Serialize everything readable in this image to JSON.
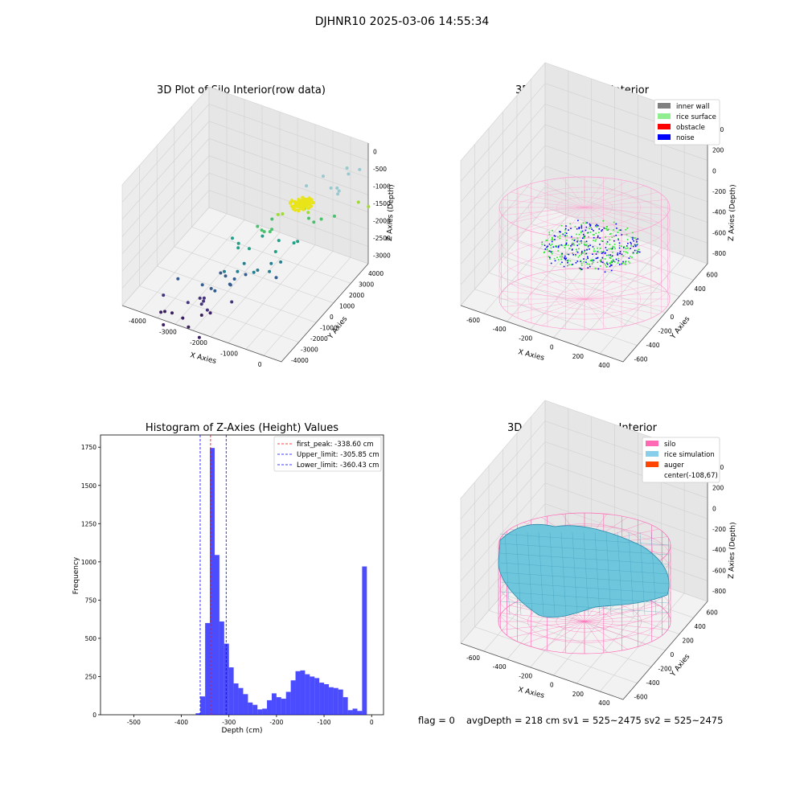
{
  "suptitle": "DJHNR10 2025-03-06 14:55:34",
  "footer": {
    "flag": "flag = 0",
    "stats": "avgDepth = 218 cm  sv1 = 525~2475  sv2 = 525~2475"
  },
  "panel_raw": {
    "title": "3D Plot of Silo Interior(row data)",
    "xlabel": "X Axies",
    "ylabel": "Y Axies",
    "zlabel": "Z Axies (Depth)",
    "xticks": [
      "-4000",
      "-3000",
      "-2000",
      "-1000",
      "0"
    ],
    "yticks": [
      "-4000",
      "-3000",
      "-2000",
      "-1000",
      "0",
      "1000",
      "2000",
      "3000",
      "4000"
    ],
    "zticks": [
      "0",
      "-500",
      "-1000",
      "-1500",
      "-2000",
      "-2500",
      "-3000"
    ]
  },
  "panel_classify": {
    "title": "3D classify of Silo Interior",
    "xlabel": "X Axies",
    "ylabel": "Y Axies",
    "zlabel": "Z Axies (Depth)",
    "xticks": [
      "-600",
      "-400",
      "-200",
      "0",
      "200",
      "400"
    ],
    "yticks": [
      "-600",
      "-400",
      "-200",
      "0",
      "200",
      "400",
      "600"
    ],
    "zticks": [
      "400",
      "200",
      "0",
      "-200",
      "-400",
      "-600",
      "-800"
    ],
    "legend": [
      {
        "label": "inner wall",
        "color": "#808080"
      },
      {
        "label": "rice surface",
        "color": "#90ee90"
      },
      {
        "label": "obstacle",
        "color": "#ff0000"
      },
      {
        "label": "noise",
        "color": "#0000ff"
      }
    ]
  },
  "panel_sim": {
    "title": "3D simulation of Silo Interior",
    "xlabel": "X Axies",
    "ylabel": "Y Axies",
    "zlabel": "Z Axies (Depth)",
    "xticks": [
      "-600",
      "-400",
      "-200",
      "0",
      "200",
      "400"
    ],
    "yticks": [
      "-600",
      "-400",
      "-200",
      "0",
      "200",
      "400",
      "600"
    ],
    "zticks": [
      "400",
      "200",
      "0",
      "-200",
      "-400",
      "-600",
      "-800"
    ],
    "legend": [
      {
        "label": "silo",
        "color": "#ff69b4"
      },
      {
        "label": "rice simulation",
        "color": "#87ceeb"
      },
      {
        "label": "auger",
        "color": "#ff4500"
      },
      {
        "label": "center(-108,67)",
        "color": ""
      }
    ]
  },
  "colors": {
    "hist_bar": "#0000ff",
    "peak_line": "#ff0000",
    "limit_line": "#0000ff",
    "silo": "#ff69b4",
    "rice": "#6ec6dc",
    "wall_grid": "#cfcfcf"
  },
  "chart_data": {
    "type": "bar",
    "title": "Histogram of Z-Axies (Height) Values",
    "xlabel": "Depth (cm)",
    "ylabel": "Frequency",
    "xlim": [
      -570,
      25
    ],
    "ylim": [
      0,
      1830
    ],
    "xticks": [
      "-500",
      "-400",
      "-300",
      "-200",
      "-100",
      "0"
    ],
    "yticks": [
      "0",
      "250",
      "500",
      "750",
      "1000",
      "1250",
      "1500",
      "1750"
    ],
    "bin_width": 10,
    "bins": [
      {
        "x0": -370,
        "count": 10
      },
      {
        "x0": -360,
        "count": 120
      },
      {
        "x0": -350,
        "count": 600
      },
      {
        "x0": -340,
        "count": 1745
      },
      {
        "x0": -330,
        "count": 1045
      },
      {
        "x0": -320,
        "count": 610
      },
      {
        "x0": -310,
        "count": 465
      },
      {
        "x0": -300,
        "count": 310
      },
      {
        "x0": -290,
        "count": 205
      },
      {
        "x0": -280,
        "count": 175
      },
      {
        "x0": -270,
        "count": 135
      },
      {
        "x0": -260,
        "count": 80
      },
      {
        "x0": -250,
        "count": 65
      },
      {
        "x0": -240,
        "count": 35
      },
      {
        "x0": -230,
        "count": 40
      },
      {
        "x0": -220,
        "count": 95
      },
      {
        "x0": -210,
        "count": 140
      },
      {
        "x0": -200,
        "count": 115
      },
      {
        "x0": -190,
        "count": 105
      },
      {
        "x0": -180,
        "count": 150
      },
      {
        "x0": -170,
        "count": 225
      },
      {
        "x0": -160,
        "count": 285
      },
      {
        "x0": -150,
        "count": 290
      },
      {
        "x0": -140,
        "count": 265
      },
      {
        "x0": -130,
        "count": 250
      },
      {
        "x0": -120,
        "count": 240
      },
      {
        "x0": -110,
        "count": 210
      },
      {
        "x0": -100,
        "count": 200
      },
      {
        "x0": -90,
        "count": 180
      },
      {
        "x0": -80,
        "count": 175
      },
      {
        "x0": -70,
        "count": 165
      },
      {
        "x0": -60,
        "count": 115
      },
      {
        "x0": -50,
        "count": 30
      },
      {
        "x0": -40,
        "count": 40
      },
      {
        "x0": -30,
        "count": 25
      },
      {
        "x0": -20,
        "count": 970
      }
    ],
    "vlines": [
      {
        "x": -338.6,
        "label": "first_peak: -338.60 cm",
        "color": "#ff0000"
      },
      {
        "x": -305.85,
        "label": "Upper_limit: -305.85 cm",
        "color": "#0000ff"
      },
      {
        "x": -360.43,
        "label": "Lower_limit: -360.43 cm",
        "color": "#0000ff"
      }
    ],
    "legend_position": "upper right"
  }
}
